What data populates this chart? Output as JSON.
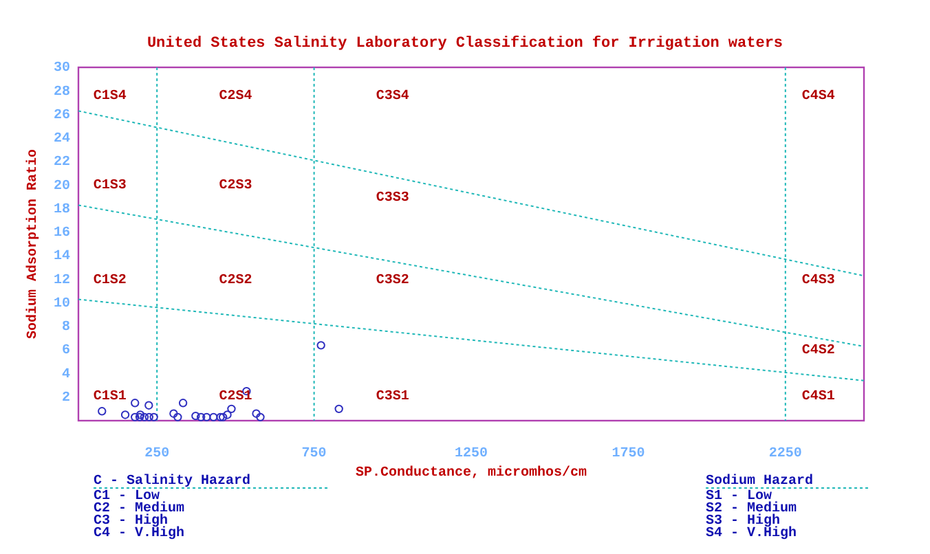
{
  "chart_data": {
    "type": "scatter",
    "title": "United States Salinity Laboratory Classification for Irrigation waters",
    "xlabel": "SP.Conductance, micromhos/cm",
    "ylabel": "Sodium Adsorption Ratio",
    "xlim": [
      0,
      2500
    ],
    "xticks": [
      250,
      750,
      1250,
      1750,
      2250
    ],
    "ylim": [
      0,
      30
    ],
    "yticks": [
      2,
      4,
      6,
      8,
      10,
      12,
      14,
      16,
      18,
      20,
      22,
      24,
      26,
      28,
      30
    ],
    "grid": false,
    "marker": "circle",
    "series": [
      {
        "color": "#3030c0",
        "x": [
          75,
          149,
          197,
          180,
          224,
          180,
          195,
          210,
          225,
          240,
          303,
          316,
          333,
          373,
          390,
          408,
          430,
          452,
          460,
          474,
          487,
          535,
          566,
          579,
          829,
          772
        ],
        "values": [
          0.8,
          0.5,
          0.5,
          1.5,
          1.3,
          0.3,
          0.3,
          0.3,
          0.3,
          0.3,
          0.6,
          0.3,
          1.5,
          0.4,
          0.3,
          0.3,
          0.3,
          0.3,
          0.3,
          0.5,
          1.0,
          2.5,
          0.6,
          0.3,
          1.0,
          6.4
        ]
      },
      {
        "type": "line",
        "color": "#20b8b8",
        "line_style": "dotted",
        "marker": "none",
        "x": [
          0,
          2500
        ],
        "values": [
          10.3,
          3.4
        ]
      },
      {
        "type": "line",
        "color": "#20b8b8",
        "line_style": "dotted",
        "marker": "none",
        "x": [
          0,
          2500
        ],
        "values": [
          18.3,
          6.3
        ]
      },
      {
        "type": "line",
        "color": "#20b8b8",
        "line_style": "dotted",
        "marker": "none",
        "x": [
          0,
          2500
        ],
        "values": [
          26.3,
          12.3
        ]
      }
    ],
    "ref_lines": [
      {
        "axis": "x",
        "value": 250,
        "color": "#20b8b8",
        "line_style": "dotted"
      },
      {
        "axis": "x",
        "value": 750,
        "color": "#20b8b8",
        "line_style": "dotted"
      },
      {
        "axis": "x",
        "value": 2250,
        "color": "#20b8b8",
        "line_style": "dotted"
      }
    ],
    "annotations": [
      "C1S4",
      "C2S4",
      "C3S4",
      "C4S4",
      "C1S3",
      "C2S3",
      "C3S3",
      "C1S2",
      "C2S2",
      "C3S2",
      "C4S3",
      "C4S2",
      "C1S1",
      "C2S1",
      "C3S1",
      "C4S1",
      "C - Salinity Hazard",
      "C1 - Low",
      "C2 - Medium",
      "C3 - High",
      "C4 - V.High",
      "Sodium Hazard",
      "S1 - Low",
      "S2 - Medium",
      "S3 - High",
      "S4 - V.High"
    ]
  }
}
